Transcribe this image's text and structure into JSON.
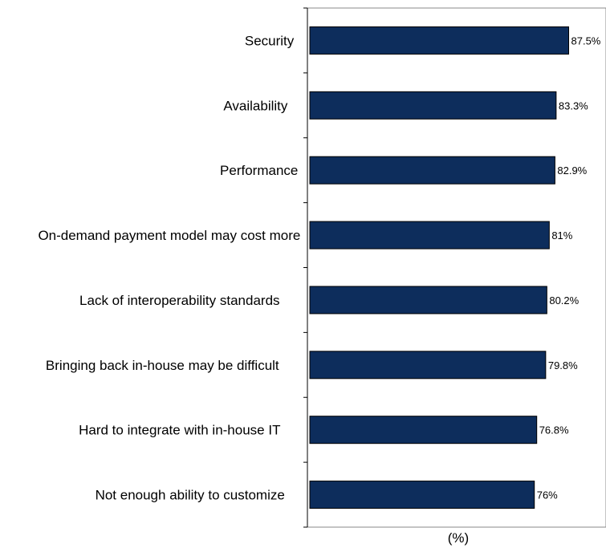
{
  "chart_data": {
    "type": "bar",
    "orientation": "horizontal",
    "categories": [
      "Security",
      "Availability",
      "Performance",
      "On-demand payment model may cost more",
      "Lack of interoperability standards",
      "Bringing back in-house may be difficult",
      "Hard to integrate with in-house IT",
      "Not enough ability to customize"
    ],
    "values": [
      87.5,
      83.3,
      82.9,
      81,
      80.2,
      79.8,
      76.8,
      76
    ],
    "value_labels": [
      "87.5%",
      "83.3%",
      "82.9%",
      "81%",
      "80.2%",
      "79.8%",
      "76.8%",
      "76%"
    ],
    "xlabel": "(%)",
    "xlim": [
      0,
      100
    ],
    "bar_color": "#0d2d5c",
    "grid": false,
    "legend": "none"
  }
}
